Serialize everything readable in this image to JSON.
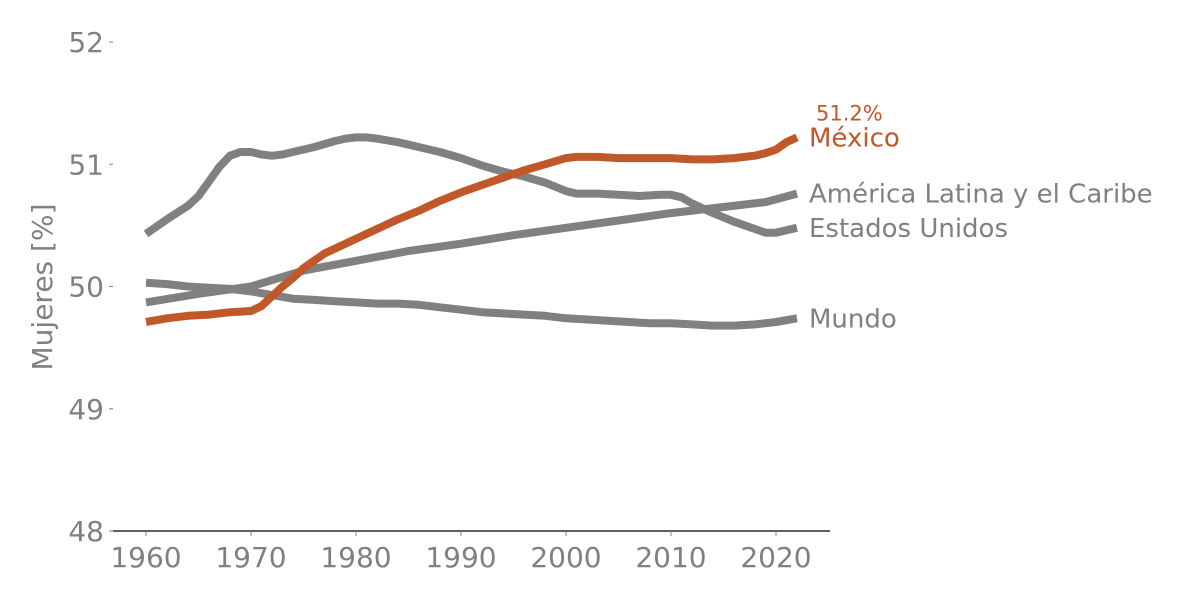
{
  "chart_data": {
    "type": "line",
    "title": "",
    "xlabel": "",
    "ylabel": "Mujeres [%]",
    "xlim": [
      1957,
      2025
    ],
    "ylim": [
      48,
      52
    ],
    "xticks": [
      1960,
      1970,
      1980,
      1990,
      2000,
      2010,
      2020
    ],
    "yticks": [
      48,
      49,
      50,
      51,
      52
    ],
    "grid": false,
    "colors": {
      "highlight": "#c0582a",
      "other": "#808080",
      "axis": "#000000"
    },
    "series": [
      {
        "name": "Estados Unidos",
        "color": "#808080",
        "x": [
          1960,
          1962,
          1964,
          1965,
          1966,
          1967,
          1968,
          1969,
          1970,
          1971,
          1972,
          1973,
          1974,
          1976,
          1978,
          1979,
          1980,
          1981,
          1982,
          1984,
          1986,
          1988,
          1990,
          1992,
          1994,
          1996,
          1998,
          2000,
          2001,
          2003,
          2005,
          2007,
          2009,
          2010,
          2011,
          2012,
          2014,
          2016,
          2018,
          2019,
          2020,
          2022
        ],
        "values": [
          50.43,
          50.55,
          50.66,
          50.74,
          50.86,
          50.98,
          51.07,
          51.1,
          51.1,
          51.08,
          51.07,
          51.08,
          51.1,
          51.14,
          51.19,
          51.21,
          51.22,
          51.22,
          51.21,
          51.18,
          51.14,
          51.1,
          51.05,
          50.99,
          50.94,
          50.9,
          50.85,
          50.78,
          50.76,
          50.76,
          50.75,
          50.74,
          50.75,
          50.75,
          50.73,
          50.68,
          50.6,
          50.53,
          50.47,
          50.44,
          50.44,
          50.48
        ]
      },
      {
        "name": "Mundo",
        "color": "#808080",
        "x": [
          1960,
          1962,
          1964,
          1966,
          1968,
          1970,
          1972,
          1974,
          1976,
          1978,
          1980,
          1982,
          1984,
          1986,
          1988,
          1990,
          1992,
          1994,
          1996,
          1998,
          2000,
          2002,
          2004,
          2006,
          2008,
          2010,
          2012,
          2014,
          2016,
          2018,
          2020,
          2022
        ],
        "values": [
          50.03,
          50.02,
          50.0,
          49.99,
          49.98,
          49.96,
          49.93,
          49.9,
          49.89,
          49.88,
          49.87,
          49.86,
          49.86,
          49.85,
          49.83,
          49.81,
          49.79,
          49.78,
          49.77,
          49.76,
          49.74,
          49.73,
          49.72,
          49.71,
          49.7,
          49.7,
          49.69,
          49.68,
          49.68,
          49.69,
          49.71,
          49.74
        ]
      },
      {
        "name": "América Latina y el Caribe",
        "color": "#808080",
        "x": [
          1960,
          1965,
          1970,
          1975,
          1980,
          1985,
          1990,
          1995,
          2000,
          2005,
          2010,
          2015,
          2019,
          2022
        ],
        "values": [
          49.87,
          49.94,
          50.0,
          50.13,
          50.21,
          50.29,
          50.35,
          50.42,
          50.48,
          50.54,
          50.6,
          50.65,
          50.69,
          50.76
        ]
      },
      {
        "name": "México",
        "color": "#c0582a",
        "x": [
          1960,
          1962,
          1964,
          1966,
          1968,
          1970,
          1971,
          1972,
          1973,
          1974,
          1975,
          1976,
          1977,
          1978,
          1980,
          1982,
          1984,
          1986,
          1988,
          1990,
          1992,
          1994,
          1996,
          1998,
          2000,
          2001,
          2003,
          2005,
          2007,
          2009,
          2010,
          2012,
          2014,
          2016,
          2017,
          2018,
          2019,
          2020,
          2021,
          2022
        ],
        "values": [
          49.71,
          49.74,
          49.76,
          49.77,
          49.79,
          49.8,
          49.84,
          49.92,
          50.0,
          50.07,
          50.15,
          50.21,
          50.27,
          50.31,
          50.39,
          50.47,
          50.55,
          50.62,
          50.7,
          50.77,
          50.83,
          50.89,
          50.95,
          51.0,
          51.05,
          51.06,
          51.06,
          51.05,
          51.05,
          51.05,
          51.05,
          51.04,
          51.04,
          51.05,
          51.06,
          51.07,
          51.09,
          51.12,
          51.18,
          51.22
        ]
      }
    ],
    "end_labels": {
      "México": "México",
      "América Latina y el Caribe": "América Latina y el Caribe",
      "Estados Unidos": "Estados Unidos",
      "Mundo": "Mundo"
    },
    "annotation": {
      "series": "México",
      "text": "51.2%"
    }
  }
}
